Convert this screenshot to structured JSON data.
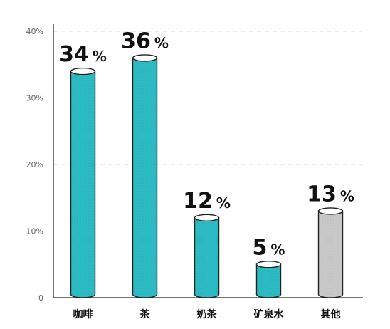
{
  "chart_data": {
    "type": "bar",
    "categories": [
      "咖啡",
      "茶",
      "奶茶",
      "矿泉水",
      "其他"
    ],
    "values": [
      34,
      36,
      12,
      5,
      13
    ],
    "value_labels": [
      {
        "number": "34",
        "unit": "%"
      },
      {
        "number": "36",
        "unit": "%"
      },
      {
        "number": "12",
        "unit": "%"
      },
      {
        "number": "5",
        "unit": "%"
      },
      {
        "number": "13",
        "unit": "%"
      }
    ],
    "y_ticks": [
      "0",
      "10%",
      "20%",
      "30%",
      "40%"
    ],
    "ylim": [
      0,
      40
    ],
    "grid": "horizontal-dashed",
    "legend": "none",
    "colors": [
      "#2bbcc4",
      "#2bbcc4",
      "#2bbcc4",
      "#2bbcc4",
      "#c9c9c9"
    ],
    "title": "",
    "xlabel": "",
    "ylabel": ""
  }
}
